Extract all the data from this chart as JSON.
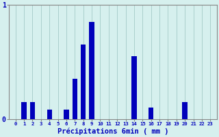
{
  "xlabel": "Précipitations 6min ( mm )",
  "categories": [
    0,
    1,
    2,
    3,
    4,
    5,
    6,
    7,
    8,
    9,
    10,
    11,
    12,
    13,
    14,
    15,
    16,
    17,
    18,
    19,
    20,
    21,
    22,
    23
  ],
  "values": [
    0,
    0.15,
    0.15,
    0,
    0.08,
    0,
    0.08,
    0.35,
    0.65,
    0.85,
    0,
    0,
    0,
    0,
    0.55,
    0,
    0.1,
    0,
    0,
    0,
    0.15,
    0,
    0,
    0
  ],
  "bar_color": "#0000bb",
  "bg_color": "#d6f0ee",
  "grid_color": "#aad0cc",
  "axis_color": "#888888",
  "text_color": "#0000bb",
  "ylim": [
    0,
    1.0
  ],
  "yticks": [
    0,
    1
  ],
  "figsize": [
    3.2,
    2.0
  ],
  "dpi": 100
}
